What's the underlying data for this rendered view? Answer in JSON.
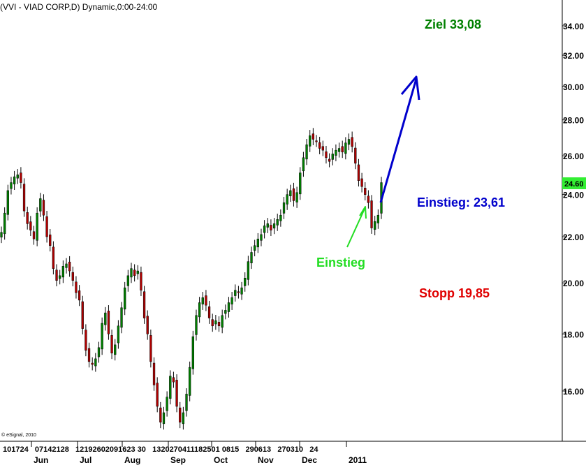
{
  "chart_data": {
    "type": "candlestick",
    "title": "(VVI - VIAD CORP,D) Dynamic,0:00-24:00",
    "copyright": "© eSignal, 2010",
    "y_axis": {
      "scale": "log",
      "side": "right",
      "ylim": [
        14.2,
        36.0
      ],
      "ticks": [
        "16.00",
        "18.00",
        "20.00",
        "22.00",
        "24.00",
        "26.00",
        "28.00",
        "30.00",
        "32.00",
        "34.00"
      ],
      "tick_values": [
        16,
        18,
        20,
        22,
        24,
        26,
        28,
        30,
        32,
        34
      ]
    },
    "last_price": "24.60",
    "date_labels": "101724   07142128   12192602091623 30   1320270411182501 0815   290613   270310   24",
    "month_labels": [
      "Jun",
      "Jul",
      "Aug",
      "Sep",
      "Oct",
      "Nov",
      "Dec",
      "2011"
    ],
    "closes": [
      22.2,
      23.1,
      24.2,
      24.6,
      24.9,
      25.0,
      24.6,
      23.2,
      22.6,
      22.3,
      21.9,
      23.1,
      23.8,
      23.0,
      22.0,
      21.6,
      20.6,
      20.1,
      20.3,
      20.7,
      20.8,
      20.5,
      20.1,
      19.6,
      19.3,
      18.2,
      17.4,
      17.0,
      16.9,
      17.1,
      17.5,
      18.4,
      18.8,
      18.0,
      17.3,
      17.6,
      18.3,
      19.0,
      19.8,
      20.3,
      20.6,
      20.3,
      20.5,
      19.7,
      18.6,
      18.0,
      17.0,
      16.2,
      15.5,
      15.0,
      15.3,
      15.8,
      16.5,
      16.3,
      15.5,
      15.0,
      15.3,
      15.9,
      16.8,
      17.9,
      18.7,
      19.2,
      19.4,
      19.1,
      18.6,
      18.3,
      18.5,
      18.3,
      18.7,
      18.9,
      19.2,
      19.4,
      19.7,
      19.6,
      19.8,
      20.2,
      20.9,
      21.3,
      21.6,
      21.9,
      22.1,
      22.5,
      22.6,
      22.3,
      22.6,
      22.8,
      23.0,
      23.6,
      24.0,
      24.2,
      23.7,
      24.1,
      25.1,
      25.9,
      26.6,
      27.1,
      26.9,
      26.8,
      26.4,
      26.3,
      25.9,
      25.7,
      26.1,
      26.3,
      26.4,
      26.2,
      26.7,
      26.9,
      26.5,
      25.6,
      24.7,
      24.4,
      24.0,
      23.6,
      22.4,
      22.7,
      23.0,
      24.6
    ],
    "annotations": [
      {
        "text": "Ziel 33,08",
        "color": "#008000",
        "value": 33.08
      },
      {
        "text": "Einstieg: 23,61",
        "color": "#0000cc",
        "value": 23.61
      },
      {
        "text": "Einstieg",
        "color": "#22dd22"
      },
      {
        "text": "Stopp 19,85",
        "color": "#e00000",
        "value": 19.85
      }
    ],
    "colors": {
      "up": "#008000",
      "down": "#b00000",
      "wick": "#000000",
      "target_arrow": "#0000cc",
      "entry_arrow": "#22dd22",
      "price_bg": "#33ee33"
    },
    "grid": false
  }
}
